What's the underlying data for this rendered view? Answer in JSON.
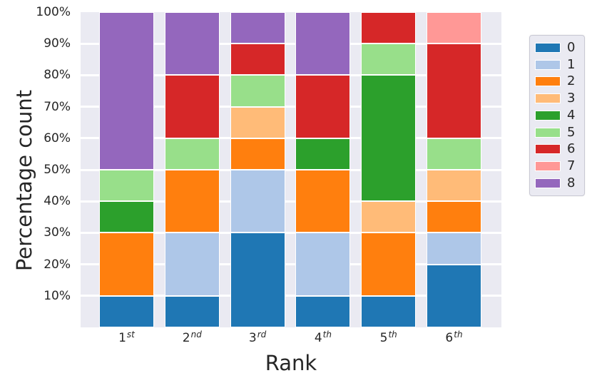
{
  "figure": {
    "background": "#ffffff",
    "plot_background": "#eaeaf2",
    "grid_color": "#ffffff",
    "text_color": "#262626"
  },
  "chart_data": {
    "type": "bar",
    "stacked": true,
    "normalized": "percent",
    "title": "",
    "xlabel": "Rank",
    "ylabel": "Percentage count",
    "grid": true,
    "legend_position": "right-outside",
    "ylim": [
      0,
      100
    ],
    "yticks": [
      "10%",
      "20%",
      "30%",
      "40%",
      "50%",
      "60%",
      "70%",
      "80%",
      "90%",
      "100%"
    ],
    "categories": [
      "1st",
      "2nd",
      "3rd",
      "4th",
      "5th",
      "6th"
    ],
    "category_parts": [
      {
        "base": "1",
        "sup": "st"
      },
      {
        "base": "2",
        "sup": "nd"
      },
      {
        "base": "3",
        "sup": "rd"
      },
      {
        "base": "4",
        "sup": "th"
      },
      {
        "base": "5",
        "sup": "th"
      },
      {
        "base": "6",
        "sup": "th"
      }
    ],
    "series": [
      {
        "name": "0",
        "color": "#1f77b4",
        "values": [
          10,
          10,
          30,
          10,
          10,
          20
        ]
      },
      {
        "name": "1",
        "color": "#aec7e8",
        "values": [
          0,
          20,
          20,
          20,
          0,
          10
        ]
      },
      {
        "name": "2",
        "color": "#ff7f0e",
        "values": [
          20,
          20,
          10,
          20,
          20,
          10
        ]
      },
      {
        "name": "3",
        "color": "#ffbb78",
        "values": [
          0,
          0,
          10,
          0,
          10,
          10
        ]
      },
      {
        "name": "4",
        "color": "#2ca02c",
        "values": [
          10,
          0,
          0,
          10,
          40,
          0
        ]
      },
      {
        "name": "5",
        "color": "#98df8a",
        "values": [
          10,
          10,
          10,
          0,
          10,
          10
        ]
      },
      {
        "name": "6",
        "color": "#d62728",
        "values": [
          0,
          20,
          10,
          20,
          10,
          30
        ]
      },
      {
        "name": "7",
        "color": "#ff9896",
        "values": [
          0,
          0,
          0,
          0,
          0,
          10
        ]
      },
      {
        "name": "8",
        "color": "#9467bd",
        "values": [
          50,
          20,
          10,
          20,
          0,
          0
        ]
      }
    ]
  }
}
